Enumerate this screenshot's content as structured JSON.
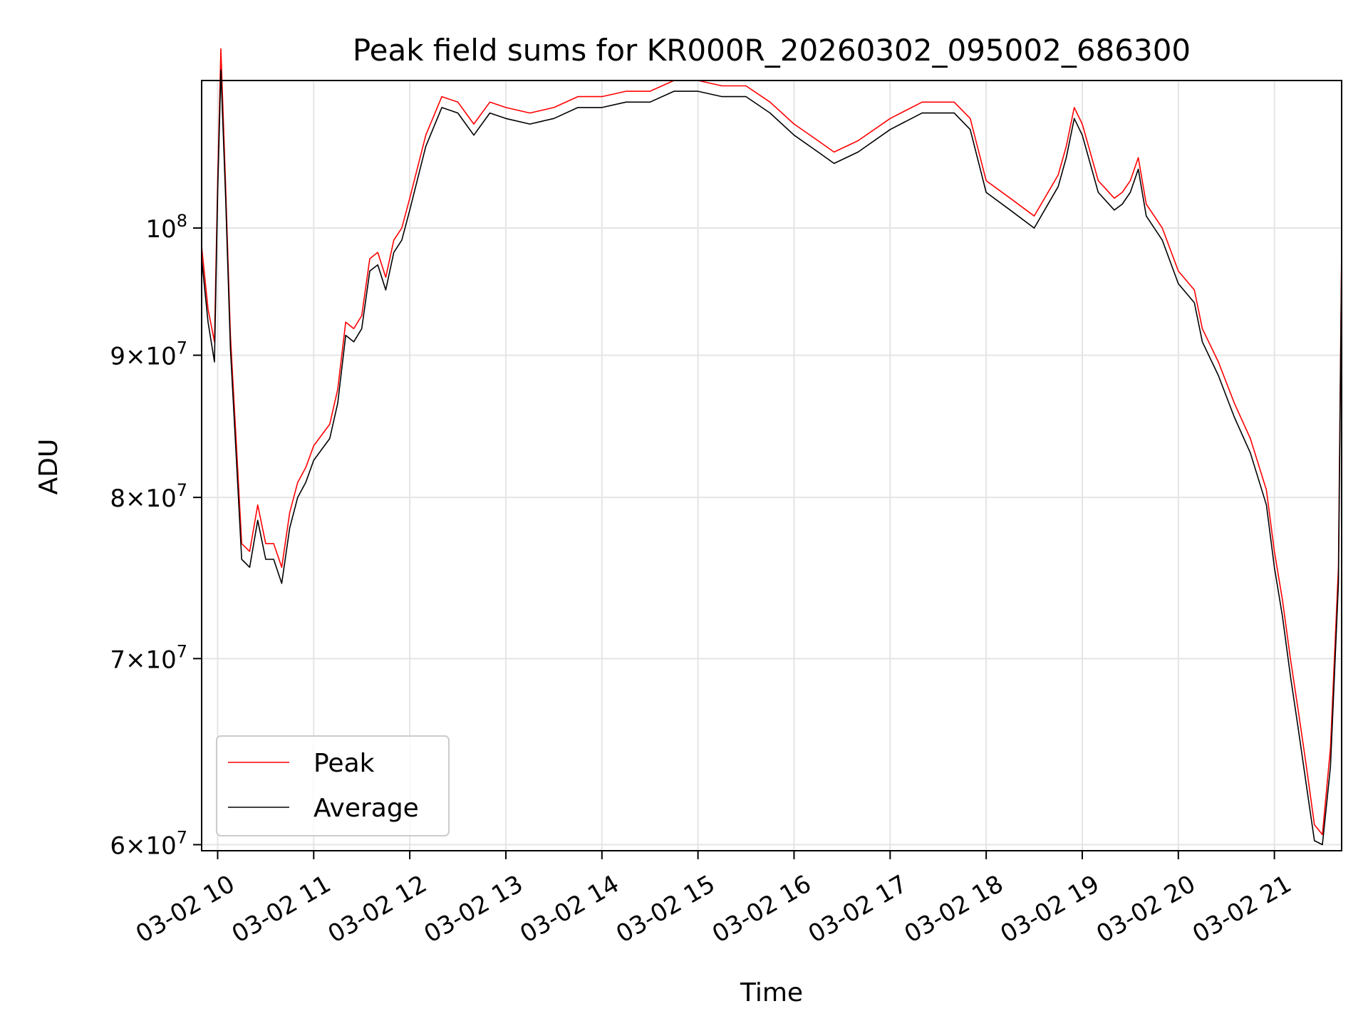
{
  "chart_data": {
    "type": "line",
    "title": "Peak field sums for KR000R_20260302_095002_686300",
    "xlabel": "Time",
    "ylabel": "ADU",
    "yscale": "log",
    "grid": true,
    "legend_position": "lower-left",
    "xlim": [
      "2026-03-02 09:50",
      "2026-03-02 21:42"
    ],
    "ylim": [
      59700000,
      113000000
    ],
    "x_ticks": [
      "2026-03-02 10:00",
      "2026-03-02 11:00",
      "2026-03-02 12:00",
      "2026-03-02 13:00",
      "2026-03-02 14:00",
      "2026-03-02 15:00",
      "2026-03-02 16:00",
      "2026-03-02 17:00",
      "2026-03-02 18:00",
      "2026-03-02 19:00",
      "2026-03-02 20:00",
      "2026-03-02 21:00"
    ],
    "x_tick_labels": [
      "03-02 10",
      "03-02 11",
      "03-02 12",
      "03-02 13",
      "03-02 14",
      "03-02 15",
      "03-02 16",
      "03-02 17",
      "03-02 18",
      "03-02 19",
      "03-02 20",
      "03-02 21"
    ],
    "y_ticks": [
      60000000,
      70000000,
      80000000,
      90000000,
      100000000
    ],
    "y_tick_labels": [
      {
        "mantissa": "6",
        "exponent": "7"
      },
      {
        "mantissa": "7",
        "exponent": "7"
      },
      {
        "mantissa": "8",
        "exponent": "7"
      },
      {
        "mantissa": "9",
        "exponent": "7"
      },
      {
        "mantissa": "",
        "exponent": "8"
      }
    ],
    "x": [
      "2026-03-02 09:50",
      "2026-03-02 09:54",
      "2026-03-02 09:58",
      "2026-03-02 10:00",
      "2026-03-02 10:02",
      "2026-03-02 10:05",
      "2026-03-02 10:08",
      "2026-03-02 10:12",
      "2026-03-02 10:15",
      "2026-03-02 10:20",
      "2026-03-02 10:25",
      "2026-03-02 10:30",
      "2026-03-02 10:35",
      "2026-03-02 10:40",
      "2026-03-02 10:45",
      "2026-03-02 10:50",
      "2026-03-02 10:55",
      "2026-03-02 11:00",
      "2026-03-02 11:10",
      "2026-03-02 11:15",
      "2026-03-02 11:20",
      "2026-03-02 11:25",
      "2026-03-02 11:30",
      "2026-03-02 11:35",
      "2026-03-02 11:40",
      "2026-03-02 11:45",
      "2026-03-02 11:50",
      "2026-03-02 11:55",
      "2026-03-02 12:00",
      "2026-03-02 12:10",
      "2026-03-02 12:20",
      "2026-03-02 12:30",
      "2026-03-02 12:40",
      "2026-03-02 12:50",
      "2026-03-02 13:00",
      "2026-03-02 13:15",
      "2026-03-02 13:30",
      "2026-03-02 13:45",
      "2026-03-02 14:00",
      "2026-03-02 14:15",
      "2026-03-02 14:30",
      "2026-03-02 14:45",
      "2026-03-02 15:00",
      "2026-03-02 15:15",
      "2026-03-02 15:30",
      "2026-03-02 15:45",
      "2026-03-02 16:00",
      "2026-03-02 16:15",
      "2026-03-02 16:25",
      "2026-03-02 16:40",
      "2026-03-02 17:00",
      "2026-03-02 17:20",
      "2026-03-02 17:40",
      "2026-03-02 17:50",
      "2026-03-02 18:00",
      "2026-03-02 18:15",
      "2026-03-02 18:30",
      "2026-03-02 18:45",
      "2026-03-02 18:50",
      "2026-03-02 18:55",
      "2026-03-02 19:00",
      "2026-03-02 19:10",
      "2026-03-02 19:20",
      "2026-03-02 19:25",
      "2026-03-02 19:30",
      "2026-03-02 19:35",
      "2026-03-02 19:40",
      "2026-03-02 19:50",
      "2026-03-02 20:00",
      "2026-03-02 20:10",
      "2026-03-02 20:15",
      "2026-03-02 20:25",
      "2026-03-02 20:35",
      "2026-03-02 20:45",
      "2026-03-02 20:55",
      "2026-03-02 21:00",
      "2026-03-02 21:05",
      "2026-03-02 21:10",
      "2026-03-02 21:15",
      "2026-03-02 21:20",
      "2026-03-02 21:25",
      "2026-03-02 21:30",
      "2026-03-02 21:35",
      "2026-03-02 21:40",
      "2026-03-02 21:42"
    ],
    "series": [
      {
        "name": "Peak",
        "color": "#ff0000",
        "values": [
          98500000,
          93500000,
          91000000,
          104000000,
          116000000,
          103500000,
          91500000,
          83000000,
          77000000,
          76500000,
          79500000,
          77000000,
          77000000,
          75500000,
          79000000,
          81000000,
          82000000,
          83500000,
          85000000,
          87500000,
          92500000,
          92000000,
          93000000,
          97500000,
          98000000,
          96000000,
          99000000,
          100000000,
          102500000,
          108000000,
          111500000,
          111000000,
          109000000,
          111000000,
          110500000,
          110000000,
          110500000,
          111500000,
          111500000,
          112000000,
          112000000,
          113000000,
          113000000,
          112500000,
          112500000,
          111000000,
          109000000,
          107500000,
          106500000,
          107500000,
          109500000,
          111000000,
          111000000,
          109500000,
          104000000,
          102500000,
          101000000,
          104500000,
          107000000,
          110500000,
          109000000,
          104000000,
          102500000,
          103000000,
          104000000,
          106000000,
          102000000,
          100000000,
          96500000,
          95000000,
          92000000,
          89500000,
          86500000,
          84000000,
          80500000,
          76500000,
          73500000,
          70000000,
          67000000,
          64000000,
          61000000,
          60500000,
          65000000,
          75500000,
          98500000
        ]
      },
      {
        "name": "Average",
        "color": "#000000",
        "values": [
          97500000,
          92500000,
          89500000,
          103000000,
          114000000,
          102500000,
          90500000,
          82000000,
          76000000,
          75500000,
          78500000,
          76000000,
          76000000,
          74500000,
          78000000,
          80000000,
          81000000,
          82500000,
          84000000,
          86500000,
          91500000,
          91000000,
          92000000,
          96500000,
          97000000,
          95000000,
          98000000,
          99000000,
          101500000,
          107000000,
          110500000,
          110000000,
          108000000,
          110000000,
          109500000,
          109000000,
          109500000,
          110500000,
          110500000,
          111000000,
          111000000,
          112000000,
          112000000,
          111500000,
          111500000,
          110000000,
          108000000,
          106500000,
          105500000,
          106500000,
          108500000,
          110000000,
          110000000,
          108500000,
          103000000,
          101500000,
          100000000,
          103500000,
          106000000,
          109500000,
          108000000,
          103000000,
          101500000,
          102000000,
          103000000,
          105000000,
          101000000,
          99000000,
          95500000,
          94000000,
          91000000,
          88500000,
          85500000,
          83000000,
          79500000,
          75500000,
          72500000,
          69000000,
          66000000,
          63000000,
          60200000,
          60000000,
          64000000,
          74500000,
          97500000
        ]
      }
    ]
  }
}
